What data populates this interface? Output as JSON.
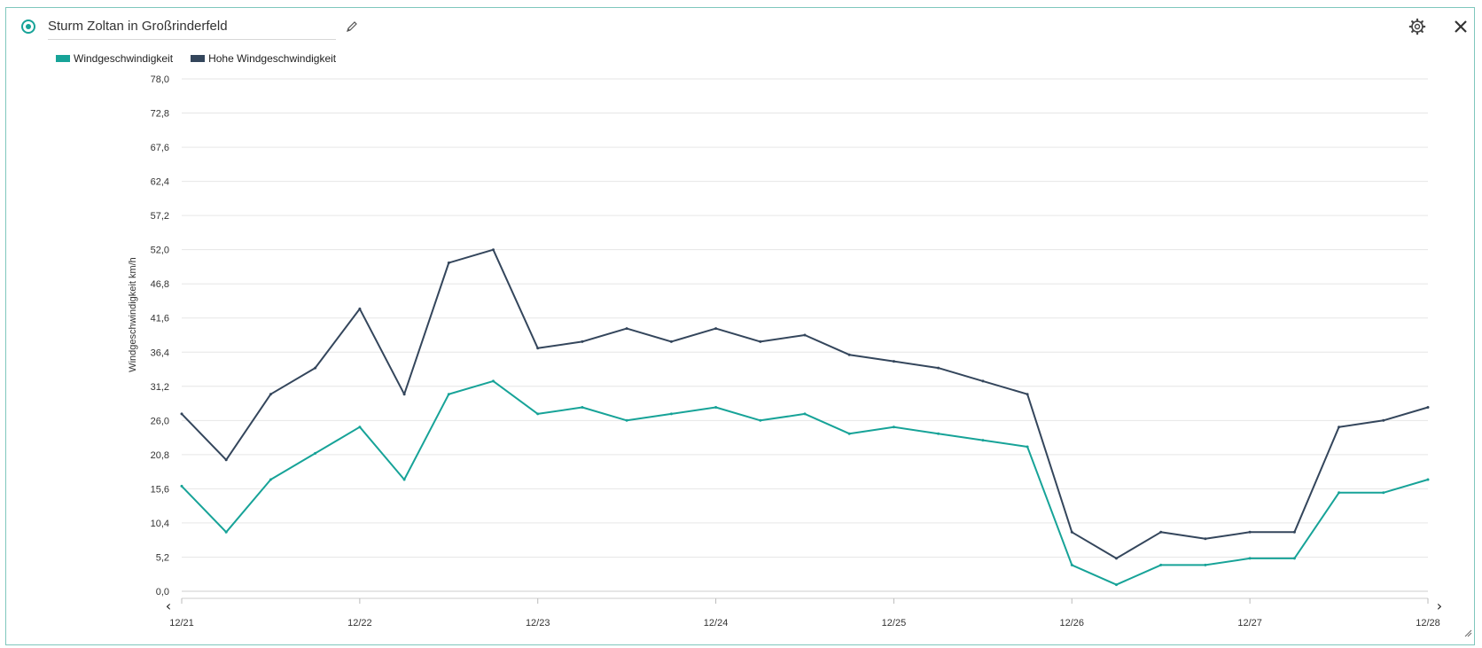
{
  "header": {
    "title": "Sturm Zoltan in Großrinderfeld",
    "icons": [
      "radio-icon",
      "pencil-icon",
      "gear-icon",
      "close-icon"
    ]
  },
  "colors": {
    "series1": "#17a398",
    "series2": "#34465c",
    "grid": "#e6e6e6",
    "border": "#7fc7bd"
  },
  "chart_data": {
    "type": "line",
    "title": "",
    "xlabel": "",
    "ylabel": "Windgeschwindigkeit km/h",
    "ylim": [
      0,
      78
    ],
    "yticks": [
      "0,0",
      "5,2",
      "10,4",
      "15,6",
      "20,8",
      "26,0",
      "31,2",
      "36,4",
      "41,6",
      "46,8",
      "52,0",
      "57,2",
      "62,4",
      "67,6",
      "72,8",
      "78,0"
    ],
    "xticks": [
      "12/21",
      "12/22",
      "12/23",
      "12/24",
      "12/25",
      "12/26",
      "12/27",
      "12/28"
    ],
    "legend_position": "top-left",
    "grid": true,
    "x": [
      "12/21 00:00",
      "12/21 06:00",
      "12/21 12:00",
      "12/21 18:00",
      "12/22 00:00",
      "12/22 06:00",
      "12/22 12:00",
      "12/22 18:00",
      "12/23 00:00",
      "12/23 06:00",
      "12/23 12:00",
      "12/23 18:00",
      "12/24 00:00",
      "12/24 06:00",
      "12/24 12:00",
      "12/24 18:00",
      "12/25 00:00",
      "12/25 06:00",
      "12/25 12:00",
      "12/25 18:00",
      "12/26 00:00",
      "12/26 06:00",
      "12/26 12:00",
      "12/26 18:00",
      "12/27 00:00",
      "12/27 06:00",
      "12/27 12:00",
      "12/27 18:00",
      "12/28 00:00"
    ],
    "series": [
      {
        "name": "Windgeschwindigkeit",
        "values": [
          16,
          9,
          17,
          21,
          25,
          17,
          30,
          32,
          27,
          28,
          26,
          27,
          28,
          26,
          27,
          24,
          25,
          24,
          23,
          22,
          4,
          1,
          4,
          4,
          5,
          5,
          15,
          15,
          17
        ]
      },
      {
        "name": "Hohe Windgeschwindigkeit",
        "values": [
          27,
          20,
          30,
          34,
          43,
          30,
          50,
          52,
          37,
          38,
          40,
          38,
          40,
          38,
          39,
          36,
          35,
          34,
          32,
          30,
          9,
          5,
          9,
          8,
          9,
          9,
          25,
          26,
          28
        ]
      }
    ]
  }
}
